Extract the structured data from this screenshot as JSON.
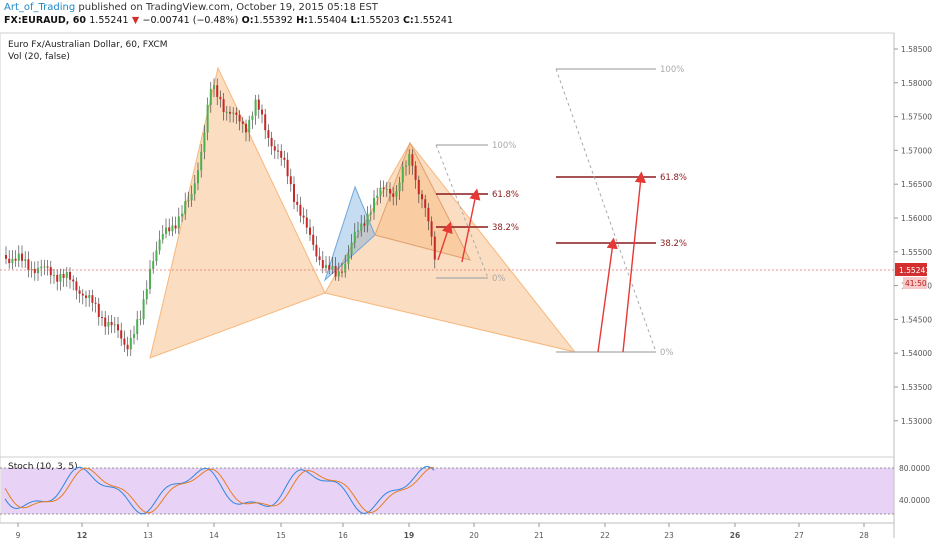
{
  "header": {
    "author": "Art_of_Trading",
    "published": "published on TradingView.com, October 19, 2015 05:18 EST"
  },
  "quote": {
    "symbol": "FX:EURAUD, 60",
    "last": "1.55241",
    "change": "−0.00741 (−0.48%)",
    "o_label": "O:",
    "o": "1.55392",
    "h_label": "H:",
    "h": "1.55404",
    "l_label": "L:",
    "l": "1.55203",
    "c_label": "C:",
    "c": "1.55241"
  },
  "chart": {
    "title": "Euro Fx/Australian Dollar, 60, FXCM",
    "volume_label": "Vol (20, false)",
    "price_ticks": [
      "1.58500",
      "1.58000",
      "1.57500",
      "1.57000",
      "1.56500",
      "1.56000",
      "1.55500",
      "1.55000",
      "1.54500",
      "1.54000",
      "1.53500",
      "1.53000"
    ],
    "last_price_tag": "1.55241",
    "countdown_tag": "41:50",
    "x_ticks": [
      "9",
      "12",
      "13",
      "14",
      "15",
      "16",
      "19",
      "20",
      "21",
      "22",
      "23",
      "26",
      "27",
      "28"
    ],
    "x_bold": [
      "12",
      "19",
      "26"
    ],
    "colors": {
      "bull": "#4caf50",
      "bear": "#c62828",
      "pattern": "#f5a65b",
      "pattern_blue": "#6fa8dc",
      "fib_gray": "#aaaaaa",
      "fib_red": "#8b1a1a",
      "arrow": "#e53935"
    },
    "small_fib": {
      "levels": [
        "100%",
        "61.8%",
        "38.2%",
        "0%"
      ]
    },
    "large_fib": {
      "levels": [
        "100%",
        "61.8%",
        "38.2%",
        "0%"
      ]
    }
  },
  "stoch": {
    "label": "Stoch (10, 3, 5)",
    "ticks": [
      "80.0000",
      "40.0000"
    ]
  }
}
